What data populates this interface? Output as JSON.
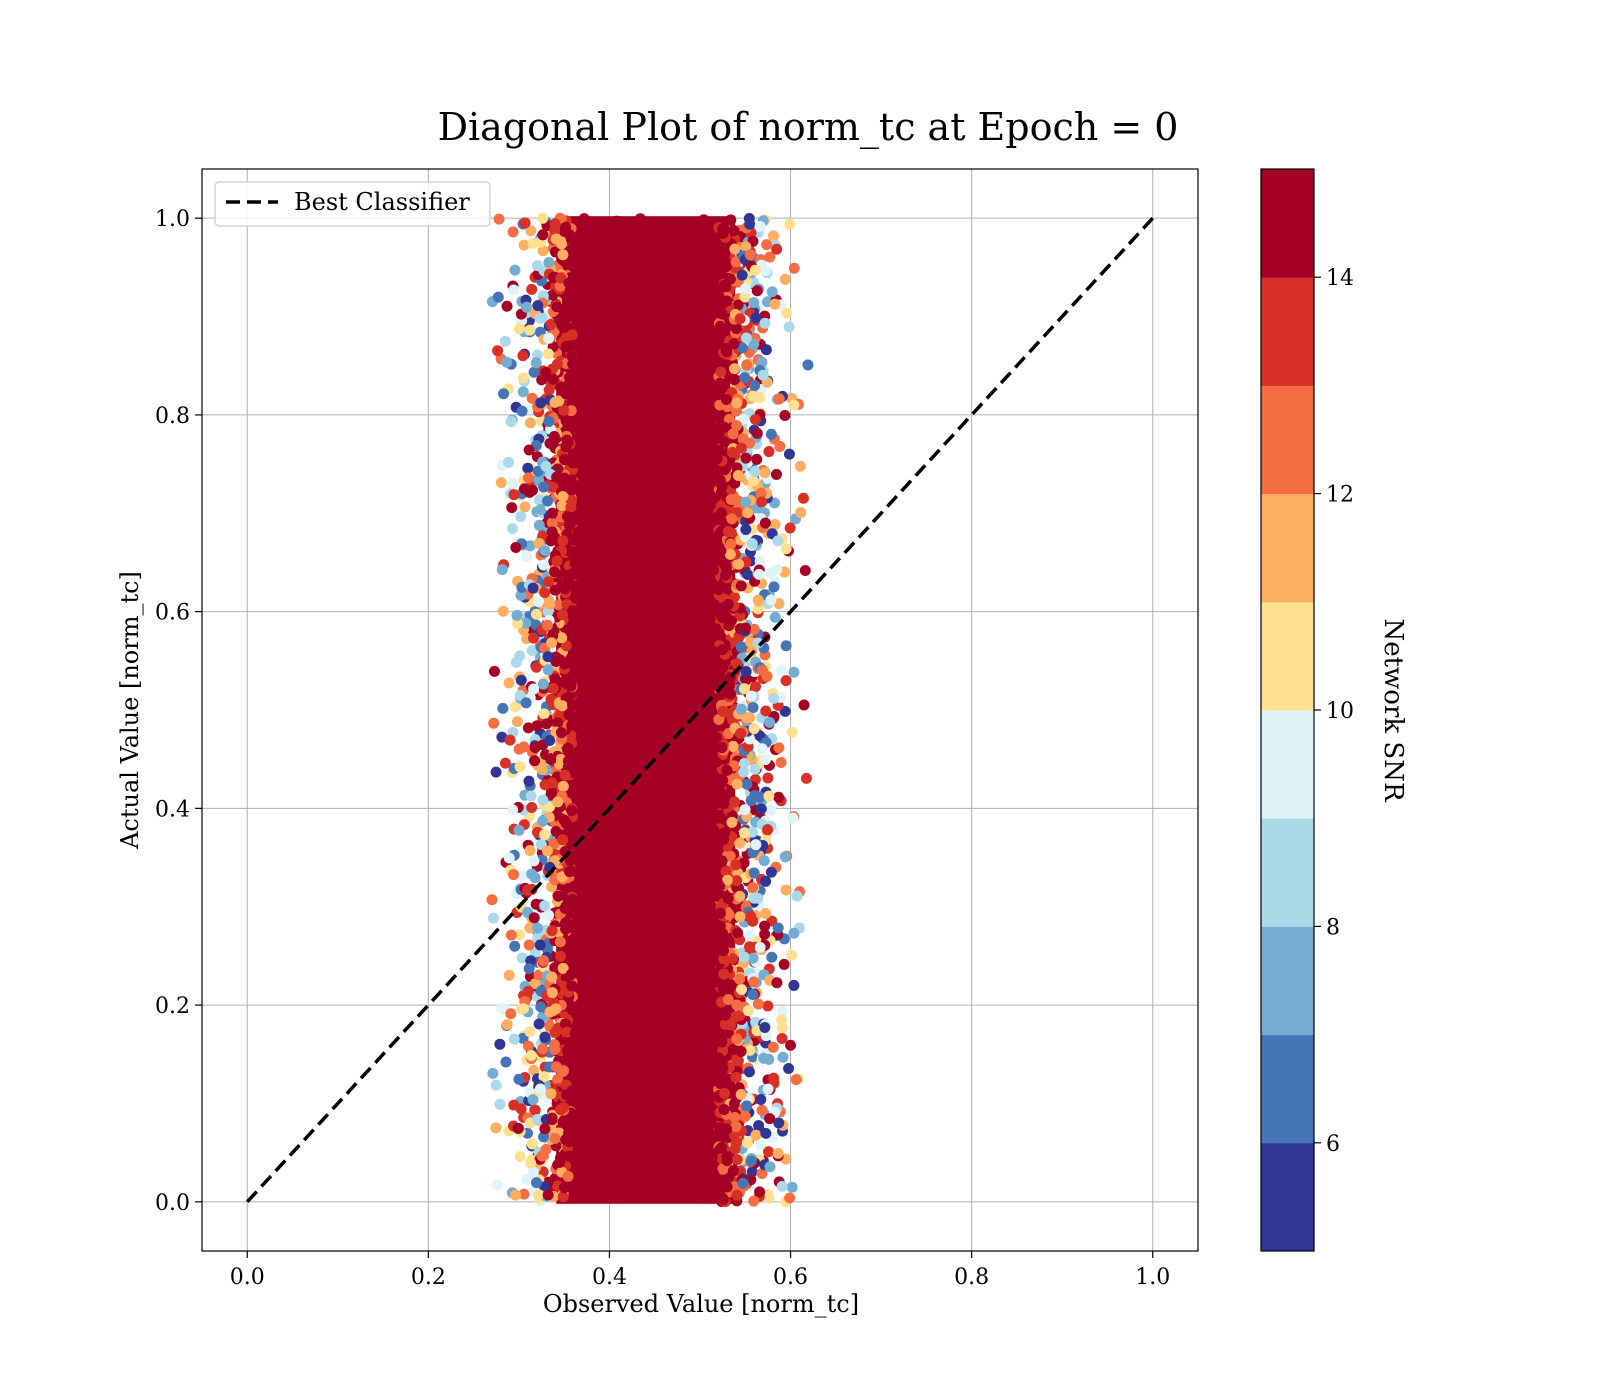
{
  "chart_data": {
    "type": "scatter",
    "title": "Diagonal Plot of norm_tc at Epoch = 0",
    "xlabel": "Observed Value [norm_tc]",
    "ylabel": "Actual Value [norm_tc]",
    "xlim": [
      -0.05,
      1.05
    ],
    "ylim": [
      -0.05,
      1.05
    ],
    "xticks": [
      "0.0",
      "0.2",
      "0.4",
      "0.6",
      "0.8",
      "1.0"
    ],
    "yticks": [
      "0.0",
      "0.2",
      "0.4",
      "0.6",
      "0.8",
      "1.0"
    ],
    "xtick_values": [
      0.0,
      0.2,
      0.4,
      0.6,
      0.8,
      1.0
    ],
    "ytick_values": [
      0.0,
      0.2,
      0.4,
      0.6,
      0.8,
      1.0
    ],
    "grid": true,
    "legend": {
      "position": "top-left",
      "entries": [
        {
          "label": "Best Classifier",
          "style": "dashed",
          "color": "#000000"
        }
      ]
    },
    "reference_line": {
      "name": "Best Classifier",
      "x": [
        0.0,
        1.0
      ],
      "y": [
        0.0,
        1.0
      ],
      "color": "#000000",
      "style": "dashed"
    },
    "scatter": {
      "description_of_distribution": "dense vertical band of points",
      "x_core_range": [
        0.35,
        0.53
      ],
      "x_full_range": [
        0.27,
        0.62
      ],
      "y_range": [
        0.0,
        1.0
      ],
      "center_x": 0.44,
      "dominant_color": "#a50026"
    },
    "colorbar": {
      "label": "Network SNR",
      "range": [
        5,
        15
      ],
      "ticks": [
        "6",
        "8",
        "10",
        "12",
        "14"
      ],
      "tick_values": [
        6,
        8,
        10,
        12,
        14
      ],
      "levels": [
        5,
        6,
        7,
        8,
        9,
        10,
        11,
        12,
        13,
        14,
        15
      ],
      "colormap": "RdYlBu_r",
      "colors": [
        "#313695",
        "#4575b4",
        "#74add1",
        "#abd9e9",
        "#e0f3f8",
        "#fee090",
        "#fdae61",
        "#f46d43",
        "#d73027",
        "#a50026"
      ]
    }
  }
}
